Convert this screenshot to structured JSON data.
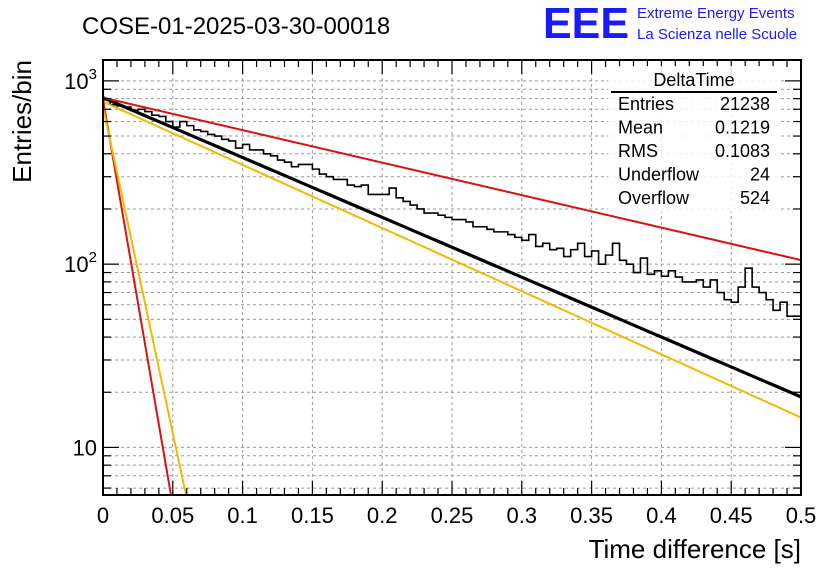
{
  "header": {
    "title": "COSE-01-2025-03-30-00018",
    "logo_text": "EEE",
    "logo_line1": "Extreme Energy Events",
    "logo_line2": "La Scienza nelle Scuole"
  },
  "stats": {
    "name": "DeltaTime",
    "rows": [
      {
        "label": "Entries",
        "value": "21238"
      },
      {
        "label": "Mean",
        "value": "0.1219"
      },
      {
        "label": "RMS",
        "value": "0.1083"
      },
      {
        "label": "Underflow",
        "value": "24"
      },
      {
        "label": "Overflow",
        "value": "524"
      }
    ]
  },
  "chart_data": {
    "type": "line",
    "title": "COSE-01-2025-03-30-00018",
    "xlabel": "Time difference [s]",
    "ylabel": "Entries/bin",
    "xlim": [
      0,
      0.5
    ],
    "ylim": [
      5.5,
      1300
    ],
    "log_y": true,
    "grid": true,
    "x_ticks": [
      0,
      0.05,
      0.1,
      0.15,
      0.2,
      0.25,
      0.3,
      0.35,
      0.4,
      0.45,
      0.5
    ],
    "x_tick_labels": [
      "0",
      "0.05",
      "0.1",
      "0.15",
      "0.2",
      "0.25",
      "0.3",
      "0.35",
      "0.4",
      "0.45",
      "0.5"
    ],
    "y_ticks": [
      10,
      100,
      1000
    ],
    "y_tick_labels": [
      "10",
      "10²",
      "10³"
    ],
    "histogram": {
      "name": "DeltaTime",
      "color": "#000000",
      "bin_width": 0.005,
      "x_start": 0,
      "values": [
        790,
        740,
        730,
        720,
        690,
        700,
        680,
        650,
        640,
        600,
        560,
        600,
        570,
        540,
        530,
        510,
        500,
        480,
        470,
        430,
        450,
        420,
        420,
        400,
        390,
        370,
        360,
        340,
        350,
        350,
        330,
        310,
        300,
        290,
        290,
        270,
        265,
        270,
        240,
        240,
        240,
        260,
        230,
        220,
        210,
        200,
        190,
        190,
        185,
        180,
        175,
        175,
        170,
        160,
        160,
        155,
        150,
        150,
        145,
        140,
        135,
        145,
        125,
        130,
        120,
        122,
        110,
        120,
        130,
        110,
        118,
        100,
        112,
        130,
        105,
        100,
        90,
        108,
        88,
        92,
        86,
        92,
        85,
        80,
        80,
        82,
        75,
        82,
        70,
        64,
        62,
        75,
        95,
        75,
        70,
        64,
        56,
        62,
        52,
        52,
        48,
        50,
        55,
        52,
        56,
        42,
        40,
        36,
        46,
        38,
        32,
        42,
        35,
        38,
        36,
        32,
        32,
        38,
        28,
        30,
        28,
        26,
        24,
        32,
        28,
        24,
        30,
        22,
        26,
        26,
        23,
        20,
        24,
        26,
        28,
        18,
        22,
        25,
        21,
        24,
        22,
        20,
        22,
        19,
        19,
        17,
        18,
        19,
        18,
        16,
        18,
        17,
        15,
        19,
        21,
        24,
        15,
        14,
        21,
        17,
        17,
        16,
        20,
        22,
        14,
        15,
        20,
        18,
        16,
        17,
        19,
        16,
        22,
        24,
        17,
        20,
        24,
        18,
        19,
        17,
        22,
        20,
        20,
        18,
        19,
        16,
        21,
        20,
        18,
        17,
        13,
        19,
        24,
        22,
        16,
        18,
        20,
        22,
        21,
        11
      ]
    },
    "series": [
      {
        "kind": "exp",
        "color": "#000000",
        "width": 3.2,
        "A": 810,
        "tau": 0.133,
        "x_start": 0,
        "x_end": 0.5
      },
      {
        "kind": "exp",
        "color": "#f5b800",
        "width": 2,
        "A": 770,
        "tau": 0.126,
        "x_start": 0,
        "x_end": 0.5
      },
      {
        "kind": "exp",
        "color": "#dd1111",
        "width": 2,
        "A": 810,
        "tau": 0.245,
        "x_start": 0,
        "x_end": 0.5
      },
      {
        "kind": "exp",
        "color": "#dd1111",
        "width": 2,
        "A": 790,
        "tau": 0.0098,
        "x_start": 0,
        "x_end": 0.053
      },
      {
        "kind": "exp",
        "color": "#f5b800",
        "width": 2,
        "A": 720,
        "tau": 0.0122,
        "x_start": 0,
        "x_end": 0.062
      }
    ]
  }
}
